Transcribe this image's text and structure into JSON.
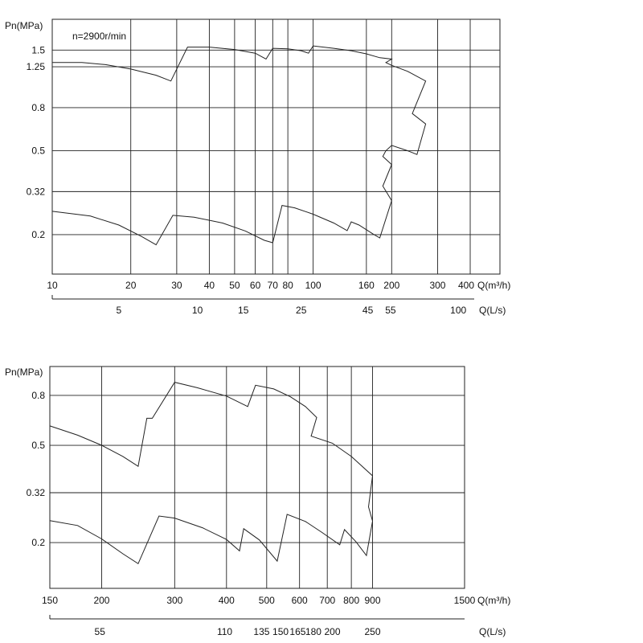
{
  "chart_data": [
    {
      "type": "line",
      "title": "",
      "annotation": "n=2900r/min",
      "ylabel": "Pn(MPa)",
      "xlabel": "Q(m³/h)",
      "x_scale": "log",
      "y_scale": "log",
      "xlim": [
        10,
        520
      ],
      "ylim": [
        0.13,
        2.1
      ],
      "grid": true,
      "y_ticks": [
        {
          "value": 1.5,
          "label": "1.5"
        },
        {
          "value": 1.25,
          "label": "1.25"
        },
        {
          "value": 0.8,
          "label": "0.8"
        },
        {
          "value": 0.5,
          "label": "0.5"
        },
        {
          "value": 0.32,
          "label": "0.32"
        },
        {
          "value": 0.2,
          "label": "0.2"
        }
      ],
      "x_ticks": [
        {
          "value": 10,
          "label": "10"
        },
        {
          "value": 20,
          "label": "20"
        },
        {
          "value": 30,
          "label": "30"
        },
        {
          "value": 40,
          "label": "40"
        },
        {
          "value": 50,
          "label": "50"
        },
        {
          "value": 60,
          "label": "60"
        },
        {
          "value": 70,
          "label": "70"
        },
        {
          "value": 80,
          "label": "80"
        },
        {
          "value": 100,
          "label": "100"
        },
        {
          "value": 160,
          "label": "160"
        },
        {
          "value": 200,
          "label": "200"
        },
        {
          "value": 300,
          "label": "300"
        },
        {
          "value": 400,
          "label": "400"
        }
      ],
      "x_axis_suffix": "Q(m³/h)",
      "secondary_xlabel": "Q(L/s)",
      "secondary_x_ticks": [
        {
          "value": 18,
          "label": "5"
        },
        {
          "value": 36,
          "label": "10"
        },
        {
          "value": 54,
          "label": "15"
        },
        {
          "value": 90,
          "label": "25"
        },
        {
          "value": 162,
          "label": "45"
        },
        {
          "value": 198,
          "label": "55"
        },
        {
          "value": 360,
          "label": "100"
        }
      ],
      "series": [
        {
          "points": [
            [
              10,
              1.31
            ],
            [
              13,
              1.31
            ],
            [
              16,
              1.28
            ],
            [
              20,
              1.22
            ],
            [
              25,
              1.14
            ],
            [
              28.5,
              1.07
            ],
            [
              33,
              1.55
            ],
            [
              40,
              1.55
            ],
            [
              50,
              1.51
            ],
            [
              60,
              1.45
            ],
            [
              66,
              1.36
            ],
            [
              70,
              1.53
            ],
            [
              80,
              1.52
            ],
            [
              90,
              1.49
            ],
            [
              96,
              1.45
            ],
            [
              100,
              1.57
            ],
            [
              120,
              1.53
            ],
            [
              140,
              1.49
            ],
            [
              160,
              1.44
            ],
            [
              180,
              1.38
            ],
            [
              200,
              1.36
            ],
            [
              190,
              1.31
            ],
            [
              200,
              1.27
            ],
            [
              230,
              1.19
            ],
            [
              270,
              1.07
            ],
            [
              240,
              0.75
            ],
            [
              270,
              0.67
            ],
            [
              250,
              0.48
            ],
            [
              230,
              0.5
            ],
            [
              200,
              0.53
            ],
            [
              190,
              0.5
            ],
            [
              185,
              0.47
            ],
            [
              200,
              0.43
            ],
            [
              185,
              0.34
            ],
            [
              200,
              0.29
            ]
          ]
        },
        {
          "points": [
            [
              10,
              0.258
            ],
            [
              14,
              0.245
            ],
            [
              18,
              0.222
            ],
            [
              22,
              0.196
            ],
            [
              25,
              0.179
            ],
            [
              29,
              0.247
            ],
            [
              35,
              0.242
            ],
            [
              45,
              0.227
            ],
            [
              55,
              0.208
            ],
            [
              65,
              0.188
            ],
            [
              70,
              0.183
            ],
            [
              76,
              0.275
            ],
            [
              85,
              0.268
            ],
            [
              100,
              0.25
            ],
            [
              120,
              0.227
            ],
            [
              135,
              0.209
            ],
            [
              140,
              0.23
            ],
            [
              150,
              0.222
            ],
            [
              170,
              0.201
            ],
            [
              180,
              0.193
            ],
            [
              200,
              0.29
            ]
          ]
        }
      ]
    },
    {
      "type": "line",
      "title": "",
      "ylabel": "Pn(MPa)",
      "xlabel": "Q(m³/h)",
      "x_scale": "log",
      "y_scale": "log",
      "xlim": [
        150,
        1500
      ],
      "ylim": [
        0.13,
        1.05
      ],
      "grid": true,
      "y_ticks": [
        {
          "value": 0.8,
          "label": "0.8"
        },
        {
          "value": 0.5,
          "label": "0.5"
        },
        {
          "value": 0.32,
          "label": "0.32"
        },
        {
          "value": 0.2,
          "label": "0.2"
        }
      ],
      "x_ticks": [
        {
          "value": 150,
          "label": "150"
        },
        {
          "value": 200,
          "label": "200"
        },
        {
          "value": 300,
          "label": "300"
        },
        {
          "value": 400,
          "label": "400"
        },
        {
          "value": 500,
          "label": "500"
        },
        {
          "value": 600,
          "label": "600"
        },
        {
          "value": 700,
          "label": "700"
        },
        {
          "value": 800,
          "label": "800"
        },
        {
          "value": 900,
          "label": "900"
        },
        {
          "value": 1500,
          "label": "1500"
        }
      ],
      "x_axis_suffix": "Q(m³/h)",
      "secondary_xlabel": "Q(L/s)",
      "secondary_x_ticks": [
        {
          "value": 198,
          "label": "55"
        },
        {
          "value": 396,
          "label": "110"
        },
        {
          "value": 486,
          "label": "135"
        },
        {
          "value": 540,
          "label": "150"
        },
        {
          "value": 594,
          "label": "165"
        },
        {
          "value": 648,
          "label": "180"
        },
        {
          "value": 720,
          "label": "200"
        },
        {
          "value": 900,
          "label": "250"
        }
      ],
      "series": [
        {
          "points": [
            [
              150,
              0.6
            ],
            [
              175,
              0.55
            ],
            [
              200,
              0.5
            ],
            [
              225,
              0.45
            ],
            [
              245,
              0.41
            ],
            [
              257,
              0.645
            ],
            [
              265,
              0.645
            ],
            [
              300,
              0.905
            ],
            [
              340,
              0.86
            ],
            [
              400,
              0.795
            ],
            [
              450,
              0.72
            ],
            [
              470,
              0.88
            ],
            [
              520,
              0.85
            ],
            [
              570,
              0.79
            ],
            [
              620,
              0.72
            ],
            [
              660,
              0.65
            ],
            [
              640,
              0.545
            ],
            [
              720,
              0.51
            ],
            [
              800,
              0.45
            ],
            [
              900,
              0.375
            ],
            [
              880,
              0.28
            ],
            [
              900,
              0.245
            ]
          ]
        },
        {
          "points": [
            [
              150,
              0.246
            ],
            [
              175,
              0.235
            ],
            [
              200,
              0.207
            ],
            [
              225,
              0.18
            ],
            [
              245,
              0.164
            ],
            [
              275,
              0.257
            ],
            [
              300,
              0.252
            ],
            [
              350,
              0.23
            ],
            [
              400,
              0.206
            ],
            [
              430,
              0.185
            ],
            [
              440,
              0.228
            ],
            [
              480,
              0.205
            ],
            [
              530,
              0.168
            ],
            [
              560,
              0.261
            ],
            [
              620,
              0.244
            ],
            [
              680,
              0.22
            ],
            [
              750,
              0.196
            ],
            [
              770,
              0.226
            ],
            [
              820,
              0.202
            ],
            [
              870,
              0.177
            ],
            [
              900,
              0.245
            ]
          ]
        }
      ]
    }
  ]
}
